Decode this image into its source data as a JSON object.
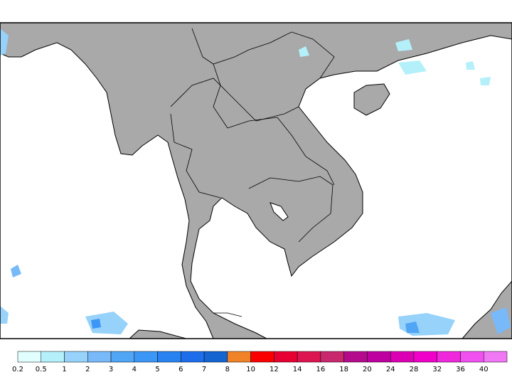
{
  "legend": {
    "labels": [
      0.2,
      0.5,
      1,
      2,
      3,
      4,
      5,
      6,
      7,
      8,
      10,
      12,
      14,
      16,
      18,
      20,
      24,
      28,
      32,
      36,
      40
    ],
    "colors": [
      "#e1ffff",
      "#b4f0fa",
      "#96d2fa",
      "#78b9fa",
      "#50a5f5",
      "#3c96f5",
      "#2882f0",
      "#1e6eeb",
      "#1464d2",
      "#f08228",
      "#fa0000",
      "#e60032",
      "#dc1450",
      "#c8286e",
      "#b40a8c",
      "#be00a0",
      "#dc00b4",
      "#f000c8",
      "#f028dc",
      "#f050f0",
      "#f078f5"
    ]
  }
}
